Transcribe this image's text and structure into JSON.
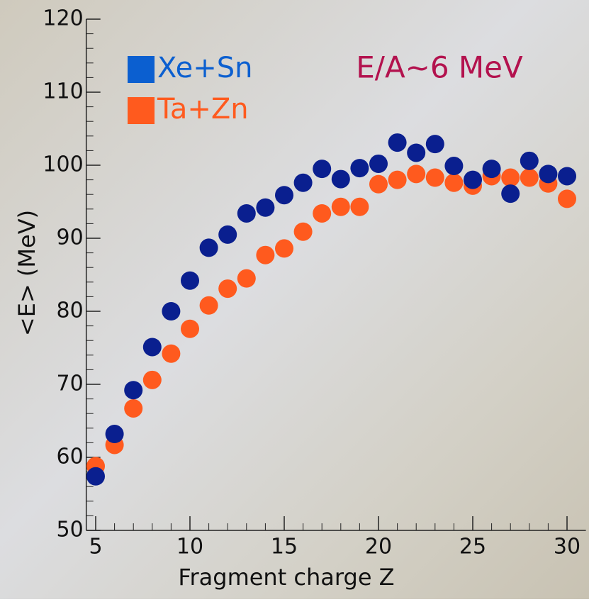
{
  "chart_data": {
    "type": "scatter",
    "annotation": "E/A~6 MeV",
    "annotation_color": "#b3124e",
    "x_label": "Fragment charge Z",
    "y_label": "<E> (MeV)",
    "xlim": [
      4.5,
      31
    ],
    "ylim": [
      50,
      120
    ],
    "xticks": [
      5,
      10,
      15,
      20,
      25,
      30
    ],
    "yticks": [
      50,
      60,
      70,
      80,
      90,
      100,
      110,
      120
    ],
    "series": [
      {
        "name": "Xe+Sn",
        "color": "#0a1f8f",
        "legend_color": "#0b5fd0",
        "x": [
          5,
          6,
          7,
          8,
          9,
          10,
          11,
          12,
          13,
          14,
          15,
          16,
          17,
          18,
          19,
          20,
          21,
          22,
          23,
          24,
          25,
          26,
          27,
          28,
          29,
          30
        ],
        "values": [
          57.4,
          63.2,
          69.2,
          75.1,
          80.0,
          84.2,
          88.7,
          90.5,
          93.4,
          94.2,
          95.9,
          97.6,
          99.5,
          98.1,
          99.6,
          100.2,
          103.1,
          101.7,
          102.9,
          99.9,
          98.0,
          99.5,
          96.1,
          100.6,
          98.8,
          98.5
        ]
      },
      {
        "name": "Ta+Zn",
        "color": "#ff5a1e",
        "legend_color": "#ff5a1e",
        "x": [
          5,
          6,
          7,
          8,
          9,
          10,
          11,
          12,
          13,
          14,
          15,
          16,
          17,
          18,
          19,
          20,
          21,
          22,
          23,
          24,
          25,
          26,
          27,
          28,
          29,
          30
        ],
        "values": [
          58.8,
          61.7,
          66.7,
          70.6,
          74.2,
          77.6,
          80.8,
          83.1,
          84.5,
          87.7,
          88.6,
          90.9,
          93.4,
          94.3,
          94.3,
          97.4,
          98.0,
          98.8,
          98.3,
          97.6,
          97.2,
          98.5,
          98.3,
          98.3,
          97.5,
          95.4
        ]
      }
    ]
  }
}
